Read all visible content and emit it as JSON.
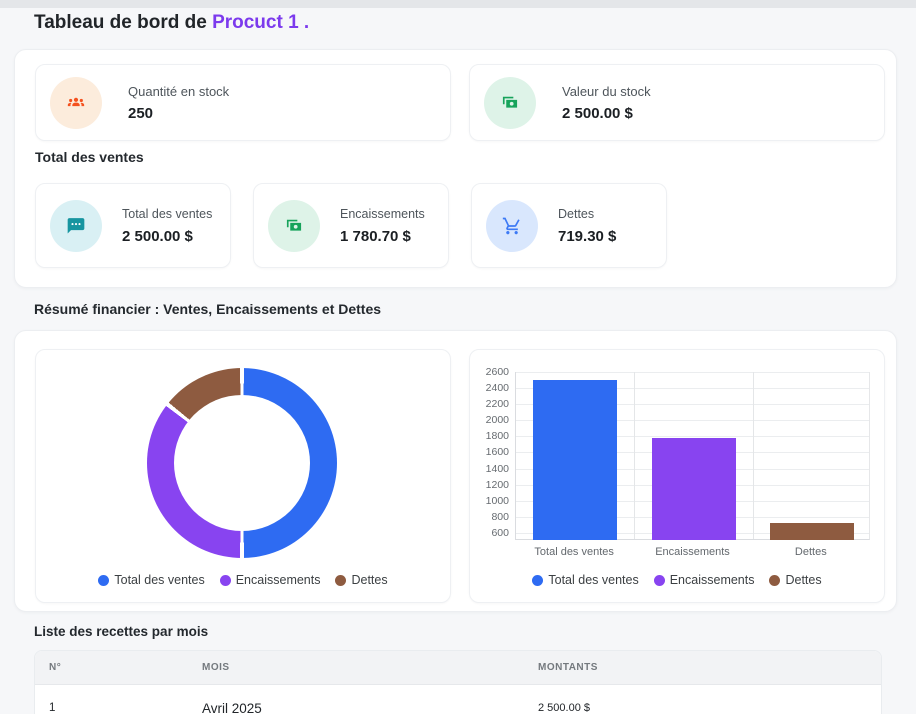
{
  "header": {
    "title_prefix": "Tableau de bord de ",
    "title_product": "Procuct 1 ."
  },
  "colors": {
    "accent_purple": "#7c3aed",
    "series_blue": "#2e6bf2",
    "series_purple": "#8844f0",
    "series_brown": "#8e5b40"
  },
  "stock_cards": [
    {
      "label": "Quantité en stock",
      "value": "250",
      "icon": "users-icon",
      "icon_color": "#f4511e",
      "icon_bg": "#fcecdc"
    },
    {
      "label": "Valeur du stock",
      "value": "2 500.00 $",
      "icon": "banknotes-icon",
      "icon_color": "#17a35b",
      "icon_bg": "#def3e8"
    }
  ],
  "sales": {
    "heading": "Total des ventes",
    "cards": [
      {
        "label": "Total des ventes",
        "value": "2 500.00 $",
        "icon": "chat-icon",
        "icon_color": "#1795a0",
        "icon_bg": "#d9f0f4"
      },
      {
        "label": "Encaissements",
        "value": "1 780.70 $",
        "icon": "banknotes-icon",
        "icon_color": "#17a35b",
        "icon_bg": "#def3e8"
      },
      {
        "label": "Dettes",
        "value": "719.30 $",
        "icon": "cart-icon",
        "icon_color": "#3d7af5",
        "icon_bg": "#d9e7fd"
      }
    ]
  },
  "summary": {
    "heading": "Résumé financier : Ventes, Encaissements et Dettes"
  },
  "chart_data": [
    {
      "type": "doughnut",
      "labels": [
        "Total des ventes",
        "Encaissements",
        "Dettes"
      ],
      "values": [
        2500.0,
        1780.7,
        719.3
      ],
      "colors": [
        "#2e6bf2",
        "#8844f0",
        "#8e5b40"
      ],
      "legend_position": "bottom",
      "cutout_ratio": 0.72
    },
    {
      "type": "bar",
      "categories": [
        "Total des ventes",
        "Encaissements",
        "Dettes"
      ],
      "values": [
        2500.0,
        1780.7,
        719.3
      ],
      "colors": [
        "#2e6bf2",
        "#8844f0",
        "#8e5b40"
      ],
      "y_ticks": [
        600,
        800,
        1000,
        1200,
        1400,
        1600,
        1800,
        2000,
        2200,
        2400,
        2600
      ],
      "ylim": [
        513,
        2600
      ],
      "grid": true,
      "legend_position": "bottom",
      "legend": [
        "Total des ventes",
        "Encaissements",
        "Dettes"
      ]
    }
  ],
  "recettes": {
    "heading": "Liste des recettes par mois",
    "columns": [
      "N°",
      "MOIS",
      "MONTANTS"
    ],
    "rows": [
      {
        "num": "1",
        "mois": "Avril 2025",
        "montant": "2 500.00 $"
      }
    ]
  }
}
